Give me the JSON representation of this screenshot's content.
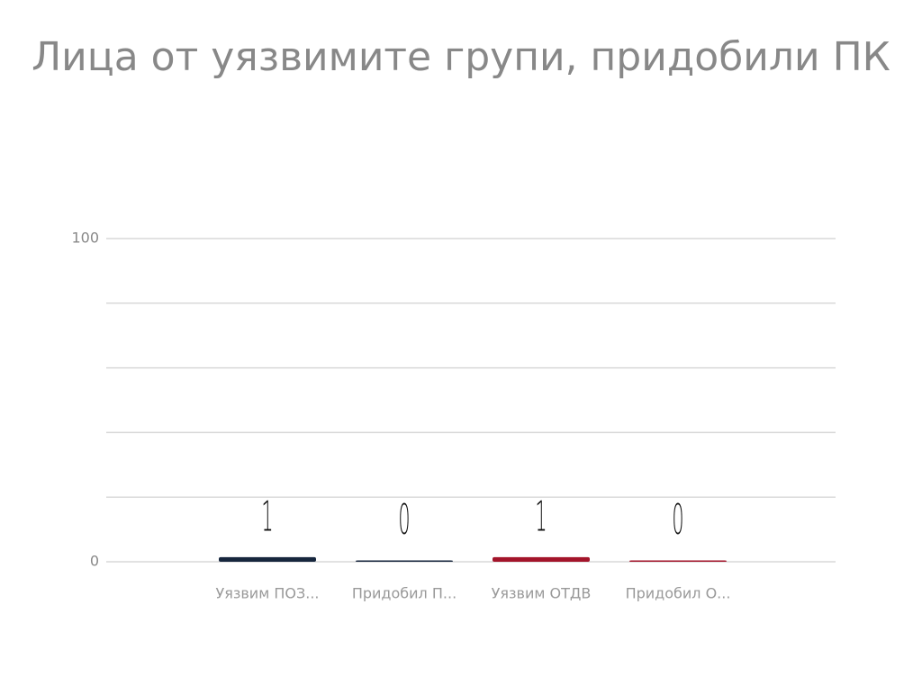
{
  "chart_data": {
    "type": "bar",
    "title": "Лица от уязвимите групи, придобили ПК",
    "categories": [
      "Уязвим ПОЗ...",
      "Придобил П...",
      "Уязвим ОТДВ",
      "Придобил О..."
    ],
    "values": [
      1,
      0,
      1,
      0
    ],
    "colors": [
      "#16263d",
      "#16263d",
      "#a3142a",
      "#a3142a"
    ],
    "ylim": [
      0,
      100
    ],
    "yticks": [
      0,
      100
    ],
    "minor_yticks": [
      20,
      40,
      60,
      80
    ],
    "grid": true
  }
}
